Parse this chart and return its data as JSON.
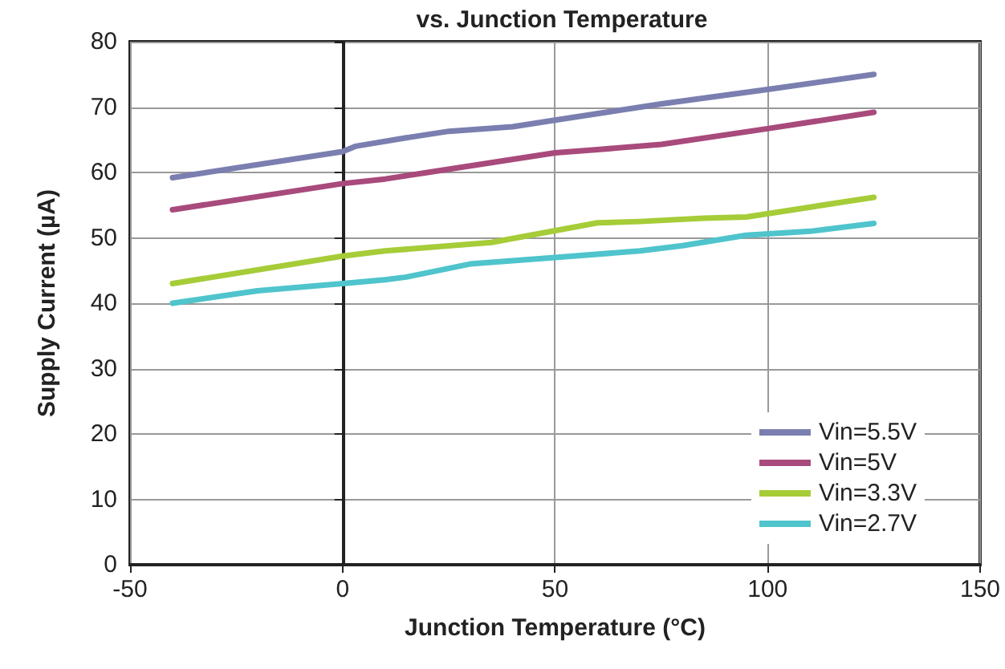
{
  "chart_data": {
    "type": "line",
    "title": "vs. Junction Temperature",
    "xlabel": "Junction Temperature (°C)",
    "ylabel": "Supply Current (µA)",
    "xlim": [
      -50,
      150
    ],
    "xticks": [
      -50,
      0,
      50,
      100,
      150
    ],
    "ylim": [
      0,
      80
    ],
    "yticks": [
      0,
      10,
      20,
      30,
      40,
      50,
      60,
      70,
      80
    ],
    "grid": true,
    "legend": "bottom right",
    "marker": "none",
    "line_style": "solid",
    "series": [
      {
        "name": "Vin=5.5V",
        "color": "#7a7fb0",
        "x": [
          -40,
          0,
          3,
          15,
          25,
          40,
          50,
          75,
          100,
          125
        ],
        "values": [
          59.2,
          63.2,
          64,
          65.3,
          66.3,
          67,
          68,
          70.5,
          72.7,
          75
        ]
      },
      {
        "name": "Vin=5V",
        "color": "#a84a7c",
        "x": [
          -40,
          0,
          10,
          20,
          50,
          60,
          75,
          100,
          125
        ],
        "values": [
          54.3,
          58.3,
          59,
          60,
          63,
          63.5,
          64.3,
          66.7,
          69.2
        ]
      },
      {
        "name": "Vin=3.3V",
        "color": "#a6cc38",
        "x": [
          -40,
          0,
          10,
          35,
          60,
          70,
          85,
          95,
          125
        ],
        "values": [
          43,
          47.2,
          48,
          49.3,
          52.3,
          52.5,
          53,
          53.2,
          56.2
        ]
      },
      {
        "name": "Vin=2.7V",
        "color": "#4fc4cc",
        "x": [
          -40,
          -20,
          0,
          10,
          15,
          30,
          50,
          70,
          80,
          95,
          110,
          125
        ],
        "values": [
          40,
          41.9,
          43,
          43.6,
          44,
          46,
          47,
          48,
          48.8,
          50.4,
          51,
          52.2
        ]
      }
    ]
  }
}
